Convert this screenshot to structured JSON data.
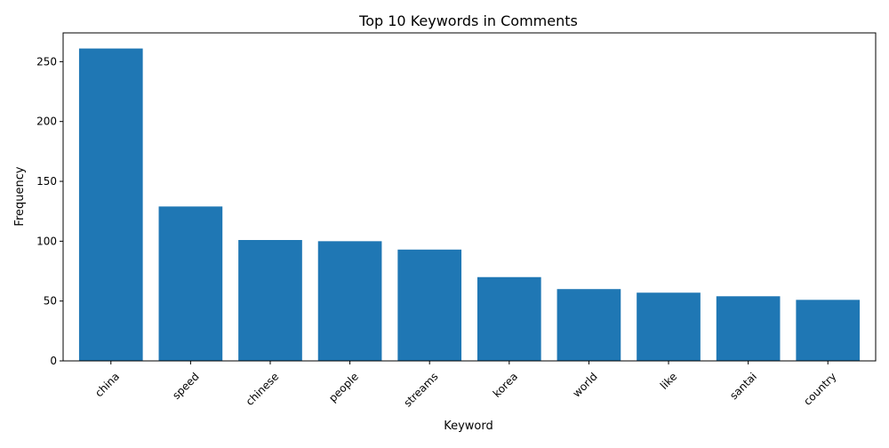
{
  "chart_data": {
    "type": "bar",
    "title": "Top 10 Keywords in Comments",
    "xlabel": "Keyword",
    "ylabel": "Frequency",
    "categories": [
      "china",
      "speed",
      "chinese",
      "people",
      "streams",
      "korea",
      "world",
      "like",
      "santai",
      "country"
    ],
    "values": [
      261,
      129,
      101,
      100,
      93,
      70,
      60,
      57,
      54,
      51
    ],
    "ylim": [
      0,
      274.05
    ],
    "yticks": [
      0,
      50,
      100,
      150,
      200,
      250
    ],
    "grid": false,
    "legend": "none",
    "bar_color": "#1f77b4",
    "x_tick_rotation_deg": 45
  }
}
